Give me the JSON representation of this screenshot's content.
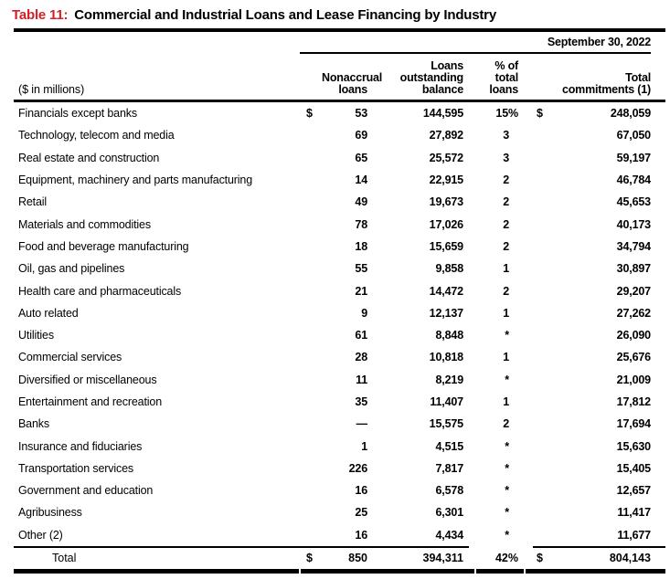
{
  "colors": {
    "accent_red": "#d71e28",
    "text": "#000000"
  },
  "title": {
    "number_label": "Table 11:",
    "text": "Commercial and Industrial Loans and Lease Financing by Industry"
  },
  "table": {
    "date_header": "September 30, 2022",
    "unit_note": "($ in millions)",
    "column_headers": {
      "nonaccrual": "Nonaccrual\nloans",
      "outstanding": "Loans\noutstanding\nbalance",
      "pct": "% of\ntotal\nloans",
      "commitments": "Total\ncommitments (1)"
    },
    "rows": [
      {
        "label": "Financials except banks",
        "d1": "$",
        "nonaccrual": "53",
        "outstanding": "144,595",
        "pct": "15%",
        "d2": "$",
        "commitments": "248,059"
      },
      {
        "label": "Technology, telecom and media",
        "d1": "",
        "nonaccrual": "69",
        "outstanding": "27,892",
        "pct": "3",
        "d2": "",
        "commitments": "67,050"
      },
      {
        "label": "Real estate and construction",
        "d1": "",
        "nonaccrual": "65",
        "outstanding": "25,572",
        "pct": "3",
        "d2": "",
        "commitments": "59,197"
      },
      {
        "label": "Equipment, machinery and parts manufacturing",
        "d1": "",
        "nonaccrual": "14",
        "outstanding": "22,915",
        "pct": "2",
        "d2": "",
        "commitments": "46,784"
      },
      {
        "label": "Retail",
        "d1": "",
        "nonaccrual": "49",
        "outstanding": "19,673",
        "pct": "2",
        "d2": "",
        "commitments": "45,653"
      },
      {
        "label": "Materials and commodities",
        "d1": "",
        "nonaccrual": "78",
        "outstanding": "17,026",
        "pct": "2",
        "d2": "",
        "commitments": "40,173"
      },
      {
        "label": "Food and beverage manufacturing",
        "d1": "",
        "nonaccrual": "18",
        "outstanding": "15,659",
        "pct": "2",
        "d2": "",
        "commitments": "34,794"
      },
      {
        "label": "Oil, gas and pipelines",
        "d1": "",
        "nonaccrual": "55",
        "outstanding": "9,858",
        "pct": "1",
        "d2": "",
        "commitments": "30,897"
      },
      {
        "label": "Health care and pharmaceuticals",
        "d1": "",
        "nonaccrual": "21",
        "outstanding": "14,472",
        "pct": "2",
        "d2": "",
        "commitments": "29,207"
      },
      {
        "label": "Auto related",
        "d1": "",
        "nonaccrual": "9",
        "outstanding": "12,137",
        "pct": "1",
        "d2": "",
        "commitments": "27,262"
      },
      {
        "label": "Utilities",
        "d1": "",
        "nonaccrual": "61",
        "outstanding": "8,848",
        "pct": "*",
        "d2": "",
        "commitments": "26,090"
      },
      {
        "label": "Commercial services",
        "d1": "",
        "nonaccrual": "28",
        "outstanding": "10,818",
        "pct": "1",
        "d2": "",
        "commitments": "25,676"
      },
      {
        "label": "Diversified or miscellaneous",
        "d1": "",
        "nonaccrual": "11",
        "outstanding": "8,219",
        "pct": "*",
        "d2": "",
        "commitments": "21,009"
      },
      {
        "label": "Entertainment and recreation",
        "d1": "",
        "nonaccrual": "35",
        "outstanding": "11,407",
        "pct": "1",
        "d2": "",
        "commitments": "17,812"
      },
      {
        "label": "Banks",
        "d1": "",
        "nonaccrual": "—",
        "outstanding": "15,575",
        "pct": "2",
        "d2": "",
        "commitments": "17,694"
      },
      {
        "label": "Insurance and fiduciaries",
        "d1": "",
        "nonaccrual": "1",
        "outstanding": "4,515",
        "pct": "*",
        "d2": "",
        "commitments": "15,630"
      },
      {
        "label": "Transportation services",
        "d1": "",
        "nonaccrual": "226",
        "outstanding": "7,817",
        "pct": "*",
        "d2": "",
        "commitments": "15,405"
      },
      {
        "label": "Government and education",
        "d1": "",
        "nonaccrual": "16",
        "outstanding": "6,578",
        "pct": "*",
        "d2": "",
        "commitments": "12,657"
      },
      {
        "label": "Agribusiness",
        "d1": "",
        "nonaccrual": "25",
        "outstanding": "6,301",
        "pct": "*",
        "d2": "",
        "commitments": "11,417"
      },
      {
        "label": "Other (2)",
        "d1": "",
        "nonaccrual": "16",
        "outstanding": "4,434",
        "pct": "*",
        "d2": "",
        "commitments": "11,677"
      }
    ],
    "total": {
      "label": "Total",
      "d1": "$",
      "nonaccrual": "850",
      "outstanding": "394,311",
      "pct": "42%",
      "d2": "$",
      "commitments": "804,143"
    }
  }
}
